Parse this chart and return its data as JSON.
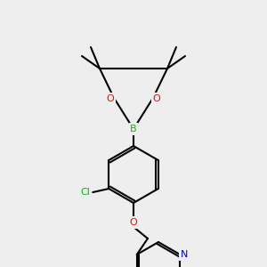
{
  "bg_color": "#eeeeee",
  "bond_color": "#000000",
  "bond_width": 1.5,
  "atom_colors": {
    "B": "#00bb00",
    "O": "#ff0000",
    "N": "#0000cc",
    "Cl": "#00bb00",
    "C": "#000000"
  },
  "figsize": [
    3.0,
    3.0
  ],
  "dpi": 100
}
